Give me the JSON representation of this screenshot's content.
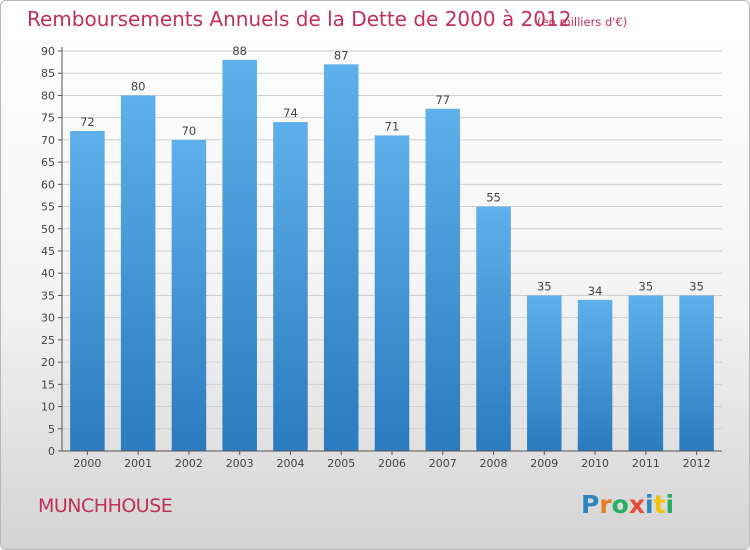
{
  "chart_data": {
    "type": "bar",
    "title": "Remboursements Annuels de la Dette de 2000 à 2012",
    "subtitle": "(en milliers d'€)",
    "categories": [
      "2000",
      "2001",
      "2002",
      "2003",
      "2004",
      "2005",
      "2006",
      "2007",
      "2008",
      "2009",
      "2010",
      "2011",
      "2012"
    ],
    "values": [
      72,
      80,
      70,
      88,
      74,
      87,
      71,
      77,
      55,
      35,
      34,
      35,
      35
    ],
    "ylim": [
      0,
      90
    ],
    "yticks": [
      0,
      5,
      10,
      15,
      20,
      25,
      30,
      35,
      40,
      45,
      50,
      55,
      60,
      65,
      70,
      75,
      80,
      85,
      90
    ],
    "grid": true,
    "colors": {
      "bar_light": "#5eb0ea",
      "bar_dark": "#2a7bbf",
      "grid": "#d0d0d0",
      "axis": "#555555",
      "title": "#c0305a"
    }
  },
  "footer": {
    "commune": "MUNCHHOUSE",
    "logo": [
      {
        "char": "P",
        "color": "#2e86c1"
      },
      {
        "char": "r",
        "color": "#e67e22"
      },
      {
        "char": "o",
        "color": "#27ae60"
      },
      {
        "char": "x",
        "color": "#e74c3c"
      },
      {
        "char": "i",
        "color": "#2e86c1"
      },
      {
        "char": "t",
        "color": "#f1c40f"
      },
      {
        "char": "i",
        "color": "#27ae60"
      }
    ]
  }
}
